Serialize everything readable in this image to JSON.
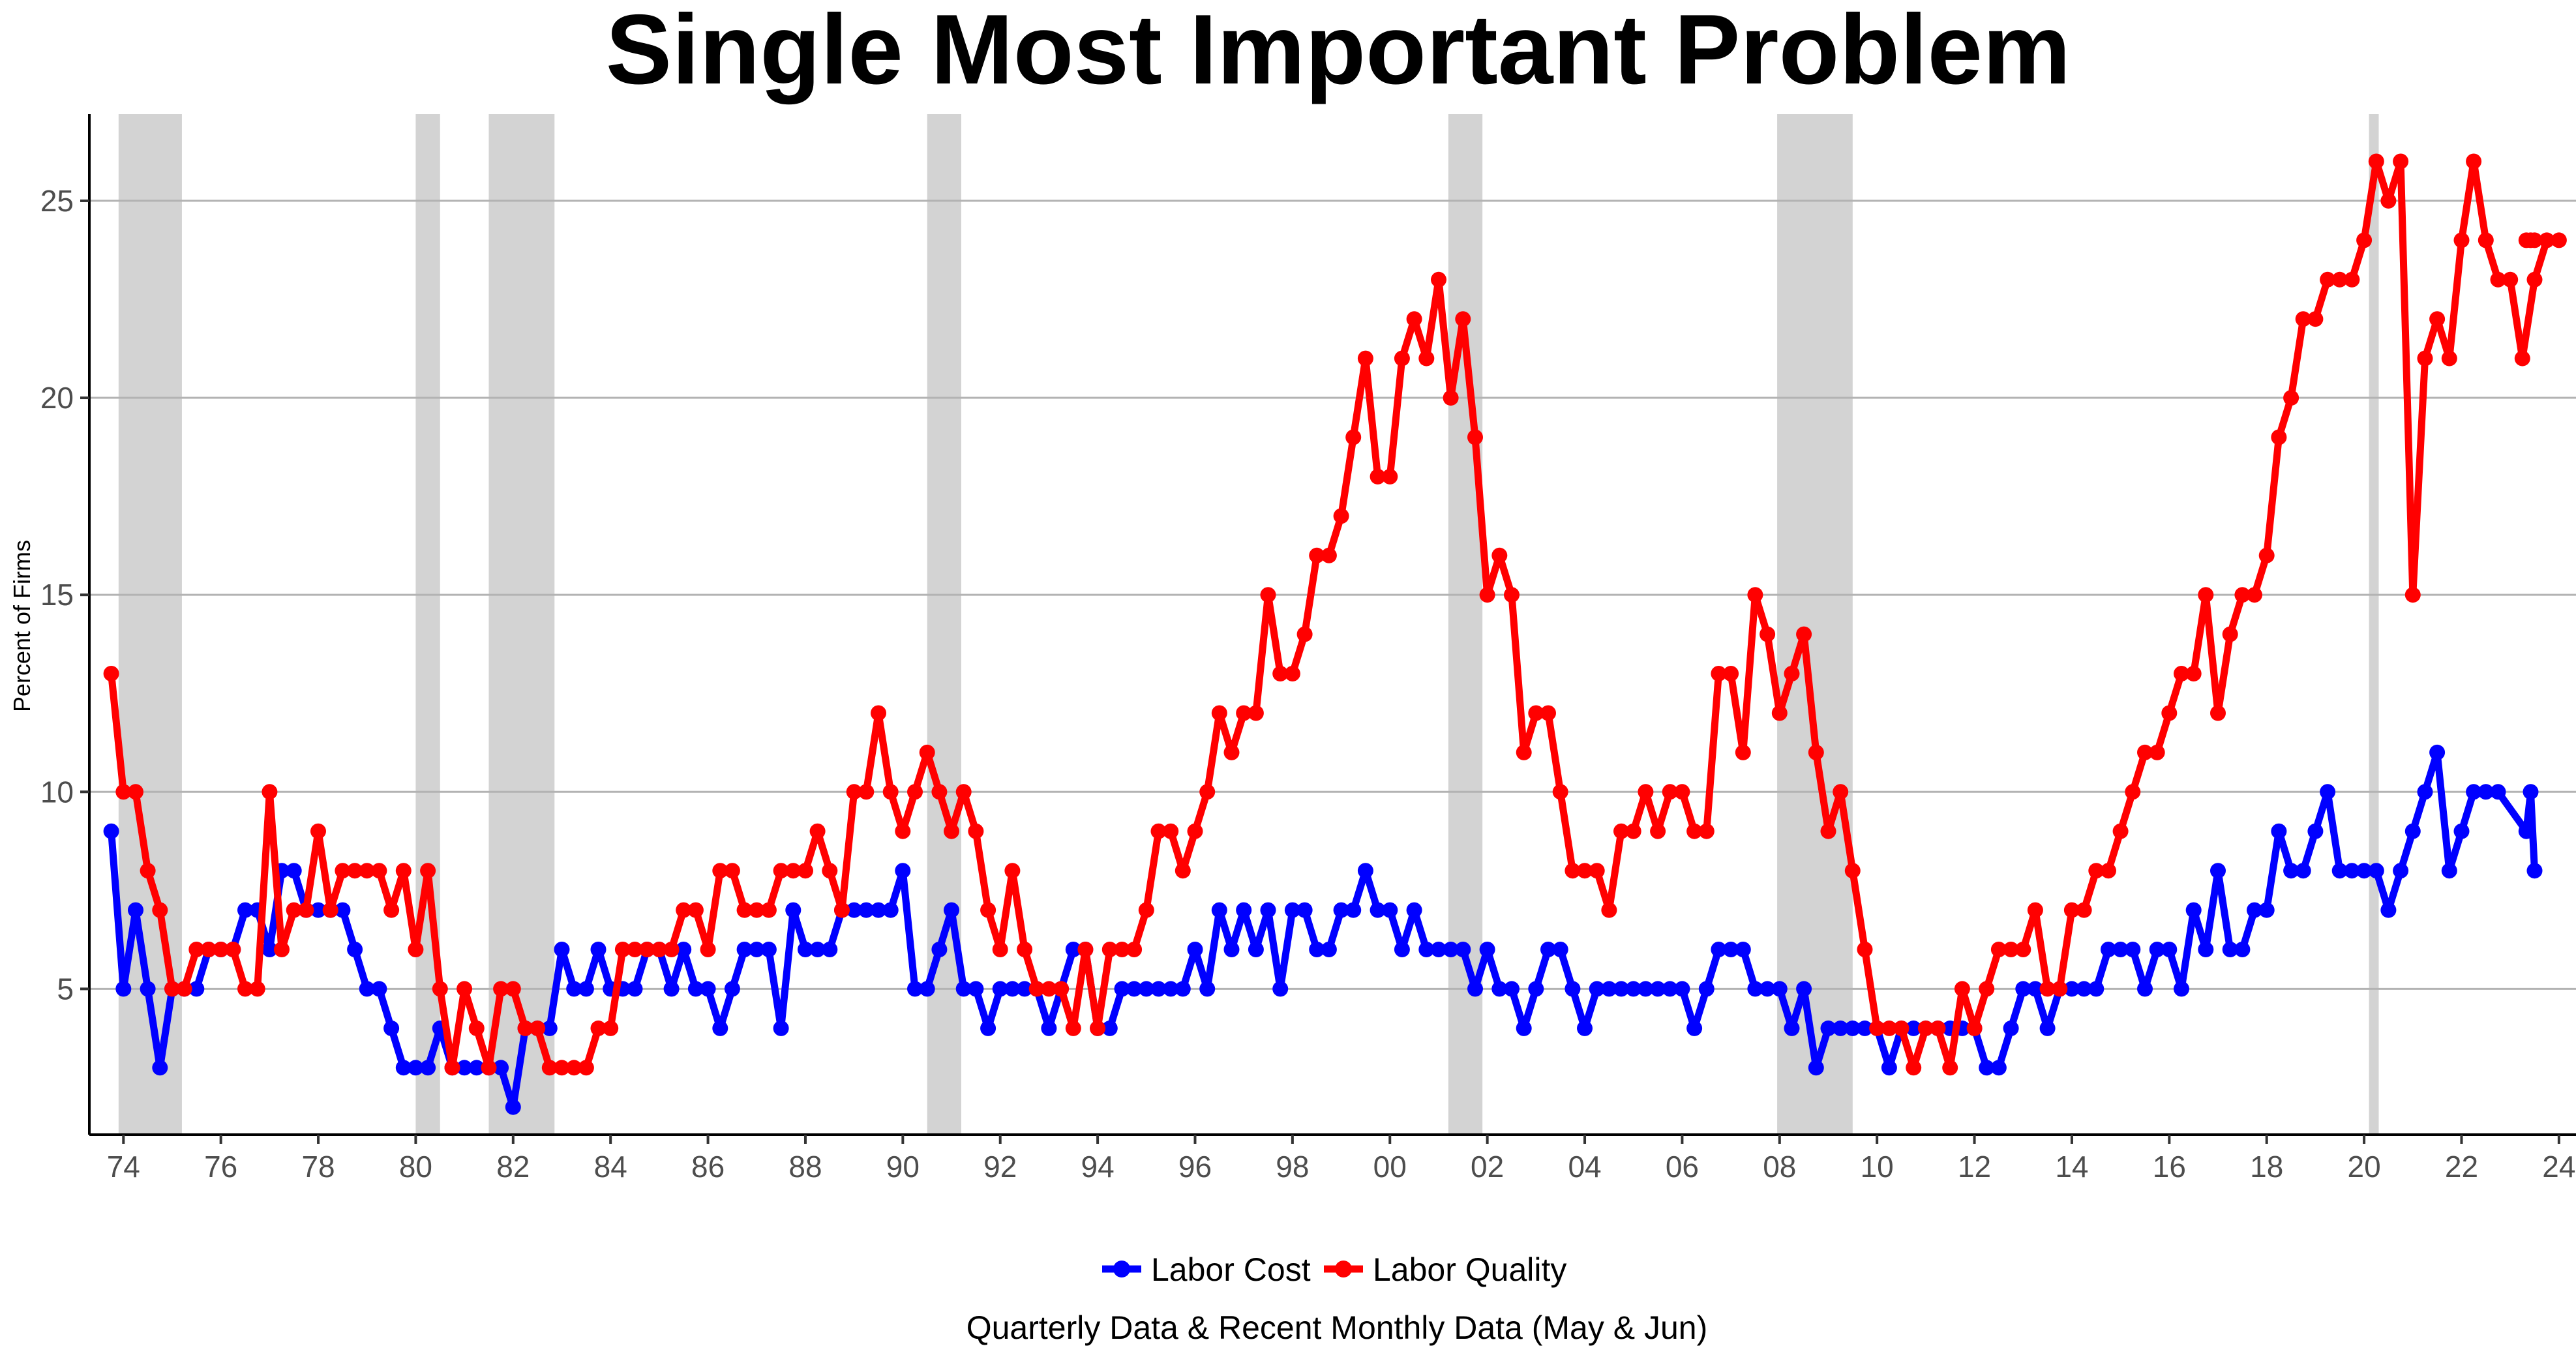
{
  "chart_data": {
    "type": "line",
    "title": "Single Most Important Problem",
    "ylabel": "Percent of Firms",
    "xlabel": "",
    "caption": "Quarterly Data & Recent Monthly Data (May & Jun)",
    "xlim": [
      1973.3,
      2024.35
    ],
    "ylim": [
      1.3,
      27.2
    ],
    "yticks": [
      5,
      10,
      15,
      20,
      25
    ],
    "xticks": [
      1974,
      1976,
      1978,
      1980,
      1982,
      1984,
      1986,
      1988,
      1990,
      1992,
      1994,
      1996,
      1998,
      2000,
      2002,
      2004,
      2006,
      2008,
      2010,
      2012,
      2014,
      2016,
      2018,
      2020,
      2022,
      2024
    ],
    "xtick_labels": [
      "74",
      "76",
      "78",
      "80",
      "82",
      "84",
      "86",
      "88",
      "90",
      "92",
      "94",
      "96",
      "98",
      "00",
      "02",
      "04",
      "06",
      "08",
      "10",
      "12",
      "14",
      "16",
      "18",
      "20",
      "22",
      "24"
    ],
    "recessions": [
      [
        1973.9,
        1975.2
      ],
      [
        1980.0,
        1980.5
      ],
      [
        1981.5,
        1982.85
      ],
      [
        1990.5,
        1991.2
      ],
      [
        2001.2,
        2001.9
      ],
      [
        2007.95,
        2009.5
      ],
      [
        2020.1,
        2020.3
      ]
    ],
    "recession_color": "#d3d3d3",
    "legend": [
      {
        "name": "Labor Cost",
        "color": "#0000ff"
      },
      {
        "name": "Labor Quality",
        "color": "#ff0000"
      }
    ],
    "series": [
      {
        "name": "Labor Cost",
        "color": "#0000ff",
        "x_start": 1973.75,
        "x_step": 0.25,
        "values": [
          9,
          5,
          7,
          5,
          3,
          5,
          5,
          5,
          6,
          6,
          6,
          7,
          7,
          6,
          8,
          8,
          7,
          7,
          7,
          7,
          6,
          5,
          5,
          4,
          3,
          3,
          3,
          4,
          3,
          3,
          3,
          3,
          3,
          2,
          4,
          4,
          4,
          6,
          5,
          5,
          6,
          5,
          5,
          5,
          6,
          6,
          5,
          6,
          5,
          5,
          4,
          5,
          6,
          6,
          6,
          4,
          7,
          6,
          6,
          6,
          7,
          7,
          7,
          7,
          7,
          8,
          5,
          5,
          6,
          7,
          5,
          5,
          4,
          5,
          5,
          5,
          5,
          4,
          5,
          6,
          6,
          4,
          4,
          5,
          5,
          5,
          5,
          5,
          5,
          6,
          5,
          7,
          6,
          7,
          6,
          7,
          5,
          7,
          7,
          6,
          6,
          7,
          7,
          8,
          7,
          7,
          6,
          7,
          6,
          6,
          6,
          6,
          5,
          6,
          5,
          5,
          4,
          5,
          6,
          6,
          5,
          4,
          5,
          5,
          5,
          5,
          5,
          5,
          5,
          5,
          4,
          5,
          6,
          6,
          6,
          5,
          5,
          5,
          4,
          5,
          3,
          4,
          4,
          4,
          4,
          4,
          3,
          4,
          4,
          4,
          4,
          4,
          4,
          4,
          3,
          3,
          4,
          5,
          5,
          4,
          5,
          5,
          5,
          5,
          6,
          6,
          6,
          5,
          6,
          6,
          5,
          7,
          6,
          8,
          6,
          6,
          7,
          7,
          9,
          8,
          8,
          9,
          10,
          8,
          8,
          8,
          8,
          7,
          8,
          9,
          10,
          11,
          8,
          9,
          10,
          10,
          10
        ],
        "extra_points": [
          [
            2023.33,
            9
          ],
          [
            2023.42,
            10
          ],
          [
            2023.5,
            8
          ]
        ]
      },
      {
        "name": "Labor Quality",
        "color": "#ff0000",
        "x_start": 1973.75,
        "x_step": 0.25,
        "values": [
          13,
          10,
          10,
          8,
          7,
          5,
          5,
          6,
          6,
          6,
          6,
          5,
          5,
          10,
          6,
          7,
          7,
          9,
          7,
          8,
          8,
          8,
          8,
          7,
          8,
          6,
          8,
          5,
          3,
          5,
          4,
          3,
          5,
          5,
          4,
          4,
          3,
          3,
          3,
          3,
          4,
          4,
          6,
          6,
          6,
          6,
          6,
          7,
          7,
          6,
          8,
          8,
          7,
          7,
          7,
          8,
          8,
          8,
          9,
          8,
          7,
          10,
          10,
          12,
          10,
          9,
          10,
          11,
          10,
          9,
          10,
          9,
          7,
          6,
          8,
          6,
          5,
          5,
          5,
          4,
          6,
          4,
          6,
          6,
          6,
          7,
          9,
          9,
          8,
          9,
          10,
          12,
          11,
          12,
          12,
          15,
          13,
          13,
          14,
          16,
          16,
          17,
          19,
          21,
          18,
          18,
          21,
          22,
          21,
          23,
          20,
          22,
          19,
          15,
          16,
          15,
          11,
          12,
          12,
          10,
          8,
          8,
          8,
          7,
          9,
          9,
          10,
          9,
          10,
          10,
          9,
          9,
          13,
          13,
          11,
          15,
          14,
          12,
          13,
          14,
          11,
          9,
          10,
          8,
          6,
          4,
          4,
          4,
          3,
          4,
          4,
          3,
          5,
          4,
          5,
          6,
          6,
          6,
          7,
          5,
          5,
          7,
          7,
          8,
          8,
          9,
          10,
          11,
          11,
          12,
          13,
          13,
          15,
          12,
          14,
          15,
          15,
          16,
          19,
          20,
          22,
          22,
          23,
          23,
          23,
          24,
          26,
          25,
          26,
          15,
          21,
          22,
          21,
          24,
          26,
          24,
          23,
          23,
          21,
          23,
          24,
          24
        ],
        "extra_points": [
          [
            2023.33,
            24
          ],
          [
            2023.42,
            24
          ],
          [
            2023.5,
            24
          ]
        ]
      }
    ]
  }
}
